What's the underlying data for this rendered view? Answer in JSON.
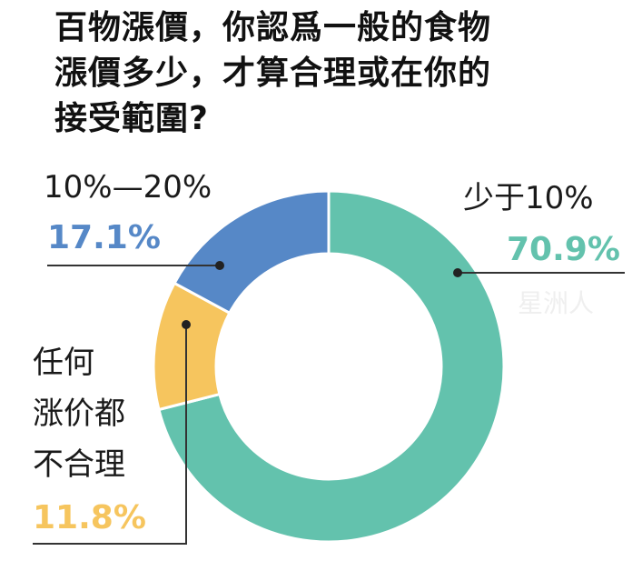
{
  "title_lines": [
    "百物漲價，你認爲一般的食物",
    "漲價多少，才算合理或在你的",
    "接受範圍?"
  ],
  "watermark": "星洲人",
  "chart_data": {
    "type": "pie",
    "donut": true,
    "title": "百物漲價，你認爲一般的食物漲價多少，才算合理或在你的接受範圍?",
    "categories": [
      "少于10%",
      "任何涨价都不合理",
      "10%—20%"
    ],
    "values": [
      70.9,
      11.8,
      17.1
    ],
    "value_labels": [
      "70.9%",
      "11.8%",
      "17.1%"
    ],
    "colors": [
      "#63c2ad",
      "#f6c55e",
      "#5688c7"
    ],
    "start": "12 o'clock, clockwise",
    "legend": "none"
  },
  "labels": {
    "green": {
      "category": "少于10%",
      "percent": "70.9%"
    },
    "blue": {
      "category": "10%—20%",
      "percent": "17.1%"
    },
    "yellow": {
      "category_lines": [
        "任何",
        "涨价都",
        "不合理"
      ],
      "percent": "11.8%"
    }
  }
}
